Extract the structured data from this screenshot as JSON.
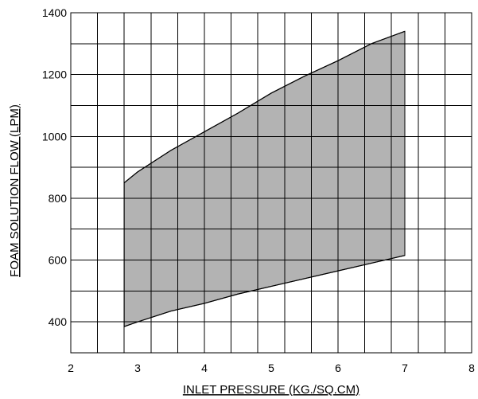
{
  "chart_data": {
    "type": "area",
    "xlabel": "INLET PRESSURE (KG./SQ.CM)",
    "ylabel": "FOAM SOLUTION FLOW (LPM)",
    "xlim": [
      2,
      8
    ],
    "ylim": [
      300,
      1400
    ],
    "x_ticks": [
      2,
      3,
      4,
      5,
      6,
      7,
      8
    ],
    "y_ticks": [
      400,
      600,
      800,
      1000,
      1200,
      1400
    ],
    "x_grid_step": 0.4,
    "y_grid_step": 100,
    "grid": true,
    "fill_color": "#b3b3b3",
    "series": [
      {
        "role": "upper",
        "x": [
          2.8,
          3.0,
          3.5,
          4.0,
          4.5,
          5.0,
          5.5,
          6.0,
          6.5,
          7.0
        ],
        "y": [
          850,
          885,
          955,
          1015,
          1075,
          1140,
          1195,
          1245,
          1300,
          1340
        ]
      },
      {
        "role": "lower",
        "x": [
          2.8,
          3.0,
          3.5,
          4.0,
          4.5,
          5.0,
          5.5,
          6.0,
          6.5,
          7.0
        ],
        "y": [
          385,
          400,
          435,
          460,
          490,
          515,
          540,
          565,
          590,
          615
        ]
      }
    ]
  }
}
